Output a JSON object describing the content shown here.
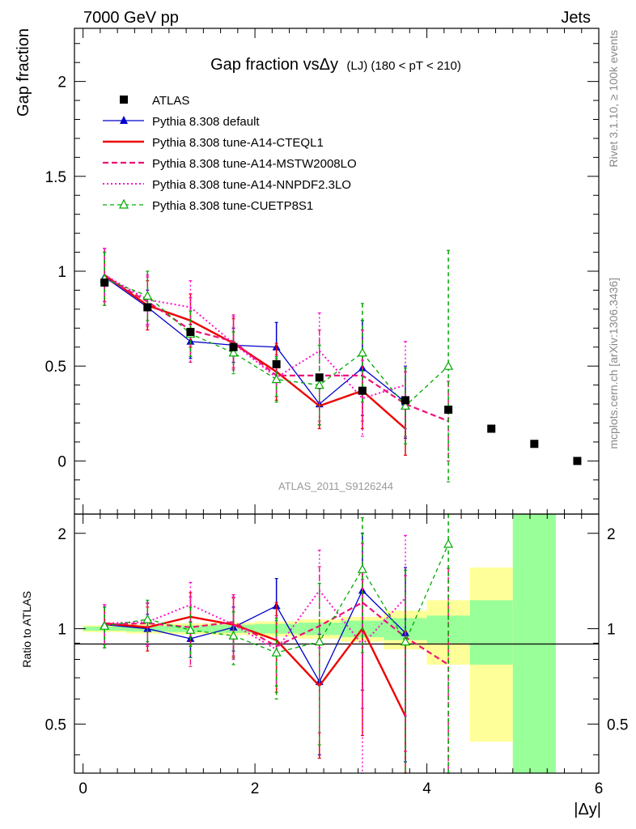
{
  "header": {
    "energy_label": "7000 GeV pp",
    "process_label": "Jets",
    "rivet_label": "Rivet 3.1.10, ≥ 100k events",
    "mcplots_label": "mcplots.cern.ch [arXiv:1306.3436]"
  },
  "chart_data": {
    "type": "line",
    "title_main": "Gap fraction vsΔy",
    "title_extra": "(LJ) (180 < pT < 210)",
    "analysis_label": "ATLAS_2011_S9126244",
    "ylabel": "Gap fraction",
    "ratio_ylabel": "Ratio to ATLAS",
    "xlabel": "|Δy|",
    "xlim": [
      -0.1,
      6.0
    ],
    "ylim": [
      -0.28,
      2.28
    ],
    "ratio_ylim": [
      0.35,
      2.3
    ],
    "ratio_log": true,
    "x_ticks": [
      "0",
      "2",
      "4",
      "6"
    ],
    "y_ticks": [
      "0",
      "0.5",
      "1",
      "1.5",
      "2"
    ],
    "ratio_ticks": [
      "0.5",
      "1",
      "2"
    ],
    "data": {
      "name": "ATLAS",
      "x": [
        0.25,
        0.75,
        1.25,
        1.75,
        2.25,
        2.75,
        3.25,
        3.75,
        4.25,
        4.75,
        5.25,
        5.75
      ],
      "y": [
        0.94,
        0.81,
        0.68,
        0.6,
        0.51,
        0.44,
        0.37,
        0.32,
        0.27,
        0.17,
        0.09,
        0.0
      ]
    },
    "ratio_bands": [
      {
        "x0": 0.0,
        "x1": 0.5,
        "inner": [
          0.985,
          1.015
        ],
        "outer": [
          0.975,
          1.025
        ]
      },
      {
        "x0": 0.5,
        "x1": 1.0,
        "inner": [
          0.98,
          1.02
        ],
        "outer": [
          0.965,
          1.035
        ]
      },
      {
        "x0": 1.0,
        "x1": 1.5,
        "inner": [
          0.975,
          1.025
        ],
        "outer": [
          0.96,
          1.04
        ]
      },
      {
        "x0": 1.5,
        "x1": 2.0,
        "inner": [
          0.97,
          1.03
        ],
        "outer": [
          0.955,
          1.045
        ]
      },
      {
        "x0": 2.0,
        "x1": 2.5,
        "inner": [
          0.965,
          1.035
        ],
        "outer": [
          0.945,
          1.055
        ]
      },
      {
        "x0": 2.5,
        "x1": 3.0,
        "inner": [
          0.955,
          1.045
        ],
        "outer": [
          0.93,
          1.07
        ]
      },
      {
        "x0": 3.0,
        "x1": 3.5,
        "inner": [
          0.94,
          1.06
        ],
        "outer": [
          0.91,
          1.09
        ]
      },
      {
        "x0": 3.5,
        "x1": 4.0,
        "inner": [
          0.92,
          1.08
        ],
        "outer": [
          0.86,
          1.14
        ]
      },
      {
        "x0": 4.0,
        "x1": 4.5,
        "inner": [
          0.9,
          1.1
        ],
        "outer": [
          0.77,
          1.23
        ]
      },
      {
        "x0": 4.5,
        "x1": 5.0,
        "inner": [
          0.77,
          1.23
        ],
        "outer": [
          0.44,
          1.56
        ]
      },
      {
        "x0": 5.0,
        "x1": 5.5,
        "inner": [
          0.35,
          2.3
        ],
        "outer": [
          0.35,
          2.3
        ]
      }
    ],
    "series": [
      {
        "name": "Pythia 8.308 default",
        "color": "#0000cc",
        "dash": "",
        "width": 1.3,
        "marker": "triangle-filled",
        "x": [
          0.25,
          0.75,
          1.25,
          1.75,
          2.25,
          2.75,
          3.25,
          3.75
        ],
        "y": [
          0.97,
          0.81,
          0.63,
          0.61,
          0.6,
          0.3,
          0.49,
          0.31
        ],
        "err": [
          0.13,
          0.09,
          0.09,
          0.09,
          0.13,
          0.11,
          0.25,
          0.19
        ],
        "ratio": [
          1.03,
          1.0,
          0.93,
          1.01,
          1.18,
          0.68,
          1.32,
          0.97
        ],
        "ratio_err": [
          0.14,
          0.11,
          0.12,
          0.16,
          0.26,
          0.28,
          0.68,
          0.59
        ]
      },
      {
        "name": "Pythia 8.308 tune-A14-CTEQL1",
        "color": "#ee0000",
        "dash": "",
        "width": 2.4,
        "marker": "none",
        "x": [
          0.25,
          0.75,
          1.25,
          1.75,
          2.25,
          2.75,
          3.25,
          3.75
        ],
        "y": [
          0.98,
          0.82,
          0.74,
          0.62,
          0.47,
          0.29,
          0.37,
          0.17
        ],
        "err": [
          0.14,
          0.13,
          0.14,
          0.13,
          0.15,
          0.12,
          0.2,
          0.14
        ],
        "ratio": [
          1.04,
          1.01,
          1.09,
          1.03,
          0.92,
          0.66,
          1.0,
          0.53
        ],
        "ratio_err": [
          0.15,
          0.16,
          0.21,
          0.22,
          0.29,
          0.27,
          0.54,
          0.45
        ]
      },
      {
        "name": "Pythia 8.308 tune-A14-MSTW2008LO",
        "color": "#ee1177",
        "dash": "7,4",
        "width": 2.2,
        "marker": "none",
        "x": [
          0.25,
          0.75,
          1.25,
          1.75,
          2.25,
          2.75,
          3.25,
          3.75,
          4.25
        ],
        "y": [
          0.97,
          0.84,
          0.69,
          0.63,
          0.45,
          0.45,
          0.45,
          0.3,
          0.21
        ],
        "err": [
          0.15,
          0.13,
          0.17,
          0.14,
          0.11,
          0.24,
          0.24,
          0.17,
          0.21
        ],
        "ratio": [
          1.03,
          1.04,
          1.01,
          1.05,
          0.88,
          1.02,
          1.21,
          0.94,
          0.77
        ],
        "ratio_err": [
          0.16,
          0.16,
          0.25,
          0.23,
          0.22,
          0.55,
          0.65,
          0.53,
          0.78
        ]
      },
      {
        "name": "Pythia 8.308 tune-A14-NNPDF2.3LO",
        "color": "#ff11cc",
        "dash": "2,3",
        "width": 2.0,
        "marker": "none",
        "x": [
          0.25,
          0.75,
          1.25,
          1.75,
          2.25,
          2.75,
          3.25,
          3.75
        ],
        "y": [
          0.98,
          0.85,
          0.81,
          0.62,
          0.44,
          0.58,
          0.33,
          0.4
        ],
        "err": [
          0.14,
          0.13,
          0.14,
          0.14,
          0.1,
          0.2,
          0.2,
          0.23
        ],
        "ratio": [
          1.04,
          1.05,
          1.19,
          1.03,
          0.86,
          1.32,
          0.89,
          1.25
        ],
        "ratio_err": [
          0.15,
          0.16,
          0.21,
          0.23,
          0.2,
          0.45,
          0.54,
          0.72
        ]
      },
      {
        "name": "Pythia 8.308 tune-CUETP8S1",
        "color": "#00aa00",
        "dash": "5,4",
        "width": 1.3,
        "marker": "triangle-open",
        "x": [
          0.25,
          0.75,
          1.25,
          1.75,
          2.25,
          2.75,
          3.25,
          3.75,
          4.25
        ],
        "y": [
          0.96,
          0.87,
          0.67,
          0.57,
          0.43,
          0.4,
          0.57,
          0.29,
          0.5
        ],
        "err": [
          0.14,
          0.13,
          0.12,
          0.11,
          0.12,
          0.21,
          0.26,
          0.2,
          0.61
        ],
        "ratio": [
          1.02,
          1.07,
          0.99,
          0.95,
          0.84,
          0.91,
          1.54,
          0.91,
          1.85
        ],
        "ratio_err": [
          0.15,
          0.16,
          0.18,
          0.18,
          0.24,
          0.48,
          0.7,
          0.62,
          2.26
        ]
      }
    ]
  }
}
